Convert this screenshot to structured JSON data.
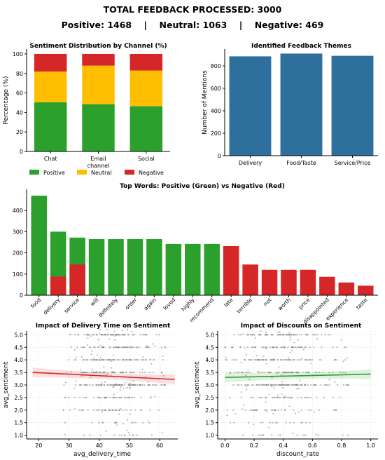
{
  "header": {
    "title": "TOTAL FEEDBACK PROCESSED: 3000",
    "summary": "Positive: 1468    |    Neutral: 1063    |    Negative: 469"
  },
  "colors": {
    "positive": "#2ca02c",
    "neutral": "#ffbf00",
    "negative": "#d62728",
    "theme_bar": "#2e6f9e",
    "scatter": "#808080",
    "delivery_line": "#d62728",
    "discount_line": "#2ca02c"
  },
  "chart_data": [
    {
      "id": "sentiment",
      "type": "bar",
      "stacked": true,
      "title": "Sentiment Distribution by Channel (%)",
      "xlabel": "channel",
      "ylabel": "Percentage (%)",
      "ylim": [
        0,
        105
      ],
      "yticks": [
        0,
        20,
        40,
        60,
        80,
        100
      ],
      "categories": [
        "Chat",
        "Email",
        "Social"
      ],
      "series": [
        {
          "name": "Positive",
          "color_key": "positive",
          "values": [
            50.5,
            48.5,
            46.5
          ]
        },
        {
          "name": "Neutral",
          "color_key": "neutral",
          "values": [
            31.5,
            39.5,
            36.5
          ]
        },
        {
          "name": "Negative",
          "color_key": "negative",
          "values": [
            18,
            12,
            17
          ]
        }
      ],
      "legend": "bottom"
    },
    {
      "id": "themes",
      "type": "bar",
      "title": "Identified Feedback Themes",
      "xlabel": "",
      "ylabel": "Number of Mentions",
      "ylim": [
        0,
        950
      ],
      "yticks": [
        0,
        200,
        400,
        600,
        800
      ],
      "categories": [
        "Delivery",
        "Food/Taste",
        "Service/Price"
      ],
      "values": [
        885,
        910,
        890
      ]
    },
    {
      "id": "words",
      "type": "bar",
      "title": "Top Words: Positive (Green) vs Negative (Red)",
      "ylim": [
        0,
        500
      ],
      "yticks": [
        0,
        100,
        200,
        300,
        400
      ],
      "categories": [
        "food",
        "delivery",
        "service",
        "will",
        "definitely",
        "order",
        "again",
        "loved",
        "highly",
        "recommend",
        "late",
        "terrible",
        "not",
        "worth",
        "price",
        "disappointed",
        "experience",
        "taste"
      ],
      "series": [
        {
          "name": "positive",
          "color_key": "positive",
          "values": [
            470,
            300,
            272,
            265,
            265,
            265,
            265,
            242,
            242,
            242,
            null,
            null,
            null,
            null,
            null,
            null,
            null,
            null
          ]
        },
        {
          "name": "negative",
          "color_key": "negative",
          "values": [
            null,
            88,
            145,
            null,
            null,
            null,
            null,
            null,
            null,
            null,
            232,
            145,
            120,
            120,
            120,
            87,
            60,
            45
          ]
        }
      ]
    },
    {
      "id": "delivery",
      "type": "scatter",
      "title": "Impact of Delivery Time on Sentiment",
      "xlabel": "avg_delivery_time",
      "ylabel": "avg_sentiment",
      "xlim": [
        16,
        66
      ],
      "ylim": [
        0.85,
        5.15
      ],
      "xticks": [
        20,
        30,
        40,
        50,
        60
      ],
      "yticks": [
        1.0,
        1.5,
        2.0,
        2.5,
        3.0,
        3.5,
        4.0,
        4.5,
        5.0
      ],
      "x_range": [
        28,
        62
      ],
      "x_center": 45,
      "x_spread": 7,
      "trend": {
        "x": [
          18,
          65
        ],
        "y": [
          3.5,
          3.22
        ]
      }
    },
    {
      "id": "discount",
      "type": "scatter",
      "title": "Impact of Discounts on Sentiment",
      "xlabel": "discount_rate",
      "ylabel": "avg_sentiment",
      "xlim": [
        -0.05,
        1.05
      ],
      "ylim": [
        0.85,
        5.15
      ],
      "xticks": [
        0.0,
        0.2,
        0.4,
        0.6,
        0.8,
        1.0
      ],
      "yticks": [
        1.0,
        1.5,
        2.0,
        2.5,
        3.0,
        3.5,
        4.0,
        4.5,
        5.0
      ],
      "x_range": [
        0.0,
        0.85
      ],
      "x_center": 0.35,
      "x_spread": 0.18,
      "trend": {
        "x": [
          0.0,
          1.0
        ],
        "y": [
          3.3,
          3.43
        ]
      }
    }
  ]
}
